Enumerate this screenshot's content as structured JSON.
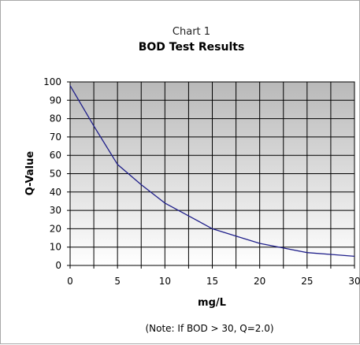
{
  "chart_data": {
    "type": "line",
    "subtitle": "Chart 1",
    "title": "BOD Test Results",
    "xlabel": "mg/L",
    "ylabel": "Q-Value",
    "note": "(Note: If BOD > 30, Q=2.0)",
    "xlim": [
      0,
      30
    ],
    "ylim": [
      0,
      100
    ],
    "x_ticks": [
      0,
      5,
      10,
      15,
      20,
      25,
      30
    ],
    "y_ticks": [
      0,
      10,
      20,
      30,
      40,
      50,
      60,
      70,
      80,
      90,
      100
    ],
    "x_grid_step": 2.5,
    "y_grid_step": 10,
    "grid": true,
    "line_color": "#1f1f8a",
    "x": [
      0,
      2.5,
      5,
      7.5,
      10,
      12.5,
      15,
      17.5,
      20,
      22.5,
      25,
      27.5,
      30
    ],
    "y": [
      98,
      76,
      55,
      44,
      34,
      27,
      20,
      16,
      12,
      9.5,
      7,
      6,
      5
    ]
  }
}
